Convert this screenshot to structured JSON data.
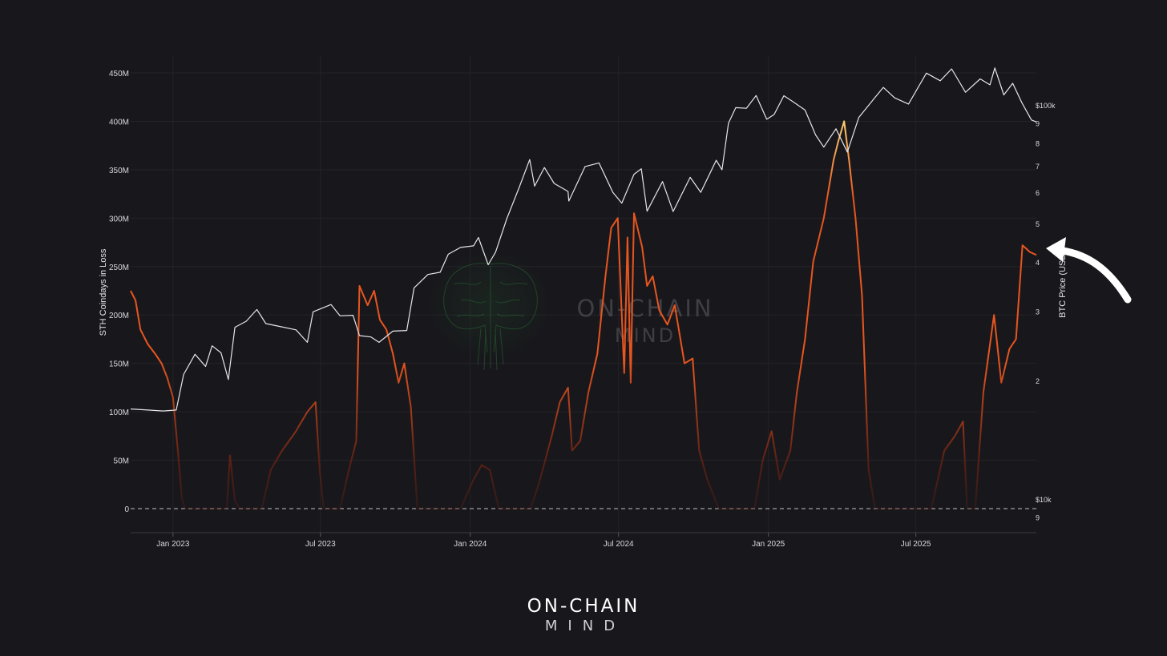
{
  "colors": {
    "background": "#18181c",
    "price_line": "#e6e6ea",
    "loss_low": "#5a1f14",
    "loss_mid": "#e8551f",
    "loss_high": "#ffcf6e",
    "brain_green": "#2e7a3a"
  },
  "watermark": {
    "line1": "ON-CHAIN",
    "line2": "MIND"
  },
  "footer_logo": {
    "line1": "ON-CHAIN",
    "line2": "MIND"
  },
  "chart_data": {
    "type": "line",
    "title": "",
    "xlabel": "",
    "ylabel_left": "STH Coindays in Loss",
    "ylabel_right": "BTC Price (USD)",
    "xlim": [
      "2022-11-10",
      "2025-11-26"
    ],
    "x_ticks": [
      "Jan 2023",
      "Jul 2023",
      "Jan 2024",
      "Jul 2024",
      "Jan 2025",
      "Jul 2025"
    ],
    "left_axis": {
      "ylim": [
        0,
        450000000
      ],
      "ticks": [
        "0",
        "50M",
        "100M",
        "150M",
        "200M",
        "250M",
        "300M",
        "350M",
        "400M",
        "450M"
      ]
    },
    "right_axis": {
      "scale": "log",
      "ticks": [
        "9",
        "$10k",
        "2",
        "3",
        "4",
        "5",
        "6",
        "7",
        "8",
        "9",
        "$100k"
      ]
    },
    "zero_line": "dashed",
    "grid": true,
    "series": [
      {
        "name": "BTC Price (USD)",
        "axis": "right",
        "points": [
          [
            "2022-11-10",
            17000
          ],
          [
            "2022-12-01",
            16900
          ],
          [
            "2022-12-20",
            16800
          ],
          [
            "2023-01-05",
            16900
          ],
          [
            "2023-01-14",
            20800
          ],
          [
            "2023-01-28",
            23400
          ],
          [
            "2023-02-10",
            21800
          ],
          [
            "2023-02-18",
            24600
          ],
          [
            "2023-03-01",
            23600
          ],
          [
            "2023-03-10",
            20200
          ],
          [
            "2023-03-18",
            27400
          ],
          [
            "2023-04-01",
            28400
          ],
          [
            "2023-04-14",
            30400
          ],
          [
            "2023-04-25",
            28000
          ],
          [
            "2023-05-10",
            27600
          ],
          [
            "2023-06-01",
            27000
          ],
          [
            "2023-06-15",
            25100
          ],
          [
            "2023-06-22",
            30000
          ],
          [
            "2023-07-14",
            31300
          ],
          [
            "2023-07-25",
            29300
          ],
          [
            "2023-08-10",
            29400
          ],
          [
            "2023-08-18",
            26100
          ],
          [
            "2023-09-01",
            25900
          ],
          [
            "2023-09-11",
            25100
          ],
          [
            "2023-09-28",
            26800
          ],
          [
            "2023-10-15",
            26900
          ],
          [
            "2023-10-24",
            34500
          ],
          [
            "2023-11-10",
            37300
          ],
          [
            "2023-11-25",
            37800
          ],
          [
            "2023-12-05",
            42000
          ],
          [
            "2023-12-20",
            43700
          ],
          [
            "2024-01-05",
            44100
          ],
          [
            "2024-01-11",
            46300
          ],
          [
            "2024-01-23",
            39500
          ],
          [
            "2024-02-01",
            42500
          ],
          [
            "2024-02-15",
            51800
          ],
          [
            "2024-03-01",
            62000
          ],
          [
            "2024-03-14",
            73000
          ],
          [
            "2024-03-20",
            62500
          ],
          [
            "2024-04-01",
            69700
          ],
          [
            "2024-04-13",
            63500
          ],
          [
            "2024-04-30",
            60600
          ],
          [
            "2024-05-01",
            57300
          ],
          [
            "2024-05-21",
            70100
          ],
          [
            "2024-06-07",
            71600
          ],
          [
            "2024-06-24",
            60300
          ],
          [
            "2024-07-05",
            56600
          ],
          [
            "2024-07-20",
            67000
          ],
          [
            "2024-07-29",
            69200
          ],
          [
            "2024-08-05",
            54000
          ],
          [
            "2024-08-24",
            64200
          ],
          [
            "2024-09-06",
            53900
          ],
          [
            "2024-09-27",
            65800
          ],
          [
            "2024-10-10",
            60300
          ],
          [
            "2024-10-29",
            72700
          ],
          [
            "2024-11-05",
            68800
          ],
          [
            "2024-11-13",
            90400
          ],
          [
            "2024-11-22",
            98900
          ],
          [
            "2024-12-05",
            98500
          ],
          [
            "2024-12-17",
            106100
          ],
          [
            "2024-12-30",
            92400
          ],
          [
            "2025-01-08",
            95000
          ],
          [
            "2025-01-20",
            106000
          ],
          [
            "2025-01-31",
            102400
          ],
          [
            "2025-02-15",
            97500
          ],
          [
            "2025-02-28",
            84300
          ],
          [
            "2025-03-10",
            78500
          ],
          [
            "2025-03-25",
            87400
          ],
          [
            "2025-04-08",
            76300
          ],
          [
            "2025-04-22",
            93400
          ],
          [
            "2025-05-10",
            103800
          ],
          [
            "2025-05-22",
            111300
          ],
          [
            "2025-06-05",
            104700
          ],
          [
            "2025-06-22",
            101000
          ],
          [
            "2025-07-14",
            121000
          ],
          [
            "2025-07-31",
            115700
          ],
          [
            "2025-08-14",
            124000
          ],
          [
            "2025-08-31",
            108200
          ],
          [
            "2025-09-18",
            117000
          ],
          [
            "2025-09-30",
            113000
          ],
          [
            "2025-10-06",
            124700
          ],
          [
            "2025-10-17",
            106500
          ],
          [
            "2025-10-28",
            114000
          ],
          [
            "2025-11-08",
            102000
          ],
          [
            "2025-11-20",
            92000
          ],
          [
            "2025-11-26",
            91000
          ]
        ]
      },
      {
        "name": "STH Coindays in Loss",
        "axis": "left",
        "points": [
          [
            "2022-11-10",
            225000000
          ],
          [
            "2022-11-16",
            215000000
          ],
          [
            "2022-11-22",
            185000000
          ],
          [
            "2022-12-01",
            170000000
          ],
          [
            "2022-12-10",
            160000000
          ],
          [
            "2022-12-18",
            150000000
          ],
          [
            "2022-12-25",
            135000000
          ],
          [
            "2023-01-01",
            115000000
          ],
          [
            "2023-01-07",
            60000000
          ],
          [
            "2023-01-12",
            10000000
          ],
          [
            "2023-01-16",
            0
          ],
          [
            "2023-03-08",
            0
          ],
          [
            "2023-03-12",
            55000000
          ],
          [
            "2023-03-18",
            8000000
          ],
          [
            "2023-03-24",
            0
          ],
          [
            "2023-04-20",
            0
          ],
          [
            "2023-05-01",
            40000000
          ],
          [
            "2023-05-15",
            60000000
          ],
          [
            "2023-06-01",
            80000000
          ],
          [
            "2023-06-15",
            100000000
          ],
          [
            "2023-06-25",
            110000000
          ],
          [
            "2023-06-30",
            40000000
          ],
          [
            "2023-07-05",
            0
          ],
          [
            "2023-07-25",
            0
          ],
          [
            "2023-08-05",
            40000000
          ],
          [
            "2023-08-14",
            70000000
          ],
          [
            "2023-08-18",
            230000000
          ],
          [
            "2023-08-28",
            210000000
          ],
          [
            "2023-09-05",
            225000000
          ],
          [
            "2023-09-12",
            195000000
          ],
          [
            "2023-09-20",
            185000000
          ],
          [
            "2023-09-28",
            160000000
          ],
          [
            "2023-10-05",
            130000000
          ],
          [
            "2023-10-12",
            150000000
          ],
          [
            "2023-10-20",
            105000000
          ],
          [
            "2023-10-28",
            0
          ],
          [
            "2023-12-20",
            0
          ],
          [
            "2024-01-05",
            30000000
          ],
          [
            "2024-01-15",
            45000000
          ],
          [
            "2024-01-25",
            40000000
          ],
          [
            "2024-02-05",
            0
          ],
          [
            "2024-03-15",
            0
          ],
          [
            "2024-03-25",
            25000000
          ],
          [
            "2024-04-10",
            75000000
          ],
          [
            "2024-04-20",
            110000000
          ],
          [
            "2024-04-30",
            125000000
          ],
          [
            "2024-05-05",
            60000000
          ],
          [
            "2024-05-15",
            70000000
          ],
          [
            "2024-05-25",
            120000000
          ],
          [
            "2024-06-05",
            160000000
          ],
          [
            "2024-06-15",
            240000000
          ],
          [
            "2024-06-22",
            290000000
          ],
          [
            "2024-06-30",
            300000000
          ],
          [
            "2024-07-08",
            140000000
          ],
          [
            "2024-07-12",
            280000000
          ],
          [
            "2024-07-16",
            130000000
          ],
          [
            "2024-07-20",
            305000000
          ],
          [
            "2024-07-30",
            270000000
          ],
          [
            "2024-08-05",
            230000000
          ],
          [
            "2024-08-12",
            240000000
          ],
          [
            "2024-08-20",
            205000000
          ],
          [
            "2024-08-30",
            190000000
          ],
          [
            "2024-09-08",
            210000000
          ],
          [
            "2024-09-20",
            150000000
          ],
          [
            "2024-09-30",
            155000000
          ],
          [
            "2024-10-08",
            60000000
          ],
          [
            "2024-10-18",
            30000000
          ],
          [
            "2024-11-01",
            0
          ],
          [
            "2024-12-15",
            0
          ],
          [
            "2024-12-25",
            50000000
          ],
          [
            "2025-01-05",
            80000000
          ],
          [
            "2025-01-15",
            30000000
          ],
          [
            "2025-01-28",
            60000000
          ],
          [
            "2025-02-05",
            120000000
          ],
          [
            "2025-02-15",
            175000000
          ],
          [
            "2025-02-25",
            255000000
          ],
          [
            "2025-03-10",
            300000000
          ],
          [
            "2025-03-22",
            360000000
          ],
          [
            "2025-03-28",
            380000000
          ],
          [
            "2025-04-04",
            400000000
          ],
          [
            "2025-04-10",
            360000000
          ],
          [
            "2025-04-18",
            300000000
          ],
          [
            "2025-04-26",
            220000000
          ],
          [
            "2025-05-04",
            40000000
          ],
          [
            "2025-05-12",
            0
          ],
          [
            "2025-07-20",
            0
          ],
          [
            "2025-08-05",
            60000000
          ],
          [
            "2025-08-18",
            75000000
          ],
          [
            "2025-08-28",
            90000000
          ],
          [
            "2025-09-02",
            0
          ],
          [
            "2025-09-12",
            0
          ],
          [
            "2025-09-22",
            120000000
          ],
          [
            "2025-10-05",
            200000000
          ],
          [
            "2025-10-14",
            130000000
          ],
          [
            "2025-10-24",
            165000000
          ],
          [
            "2025-11-01",
            175000000
          ],
          [
            "2025-11-09",
            272000000
          ],
          [
            "2025-11-18",
            265000000
          ],
          [
            "2025-11-26",
            262000000
          ]
        ]
      }
    ]
  }
}
